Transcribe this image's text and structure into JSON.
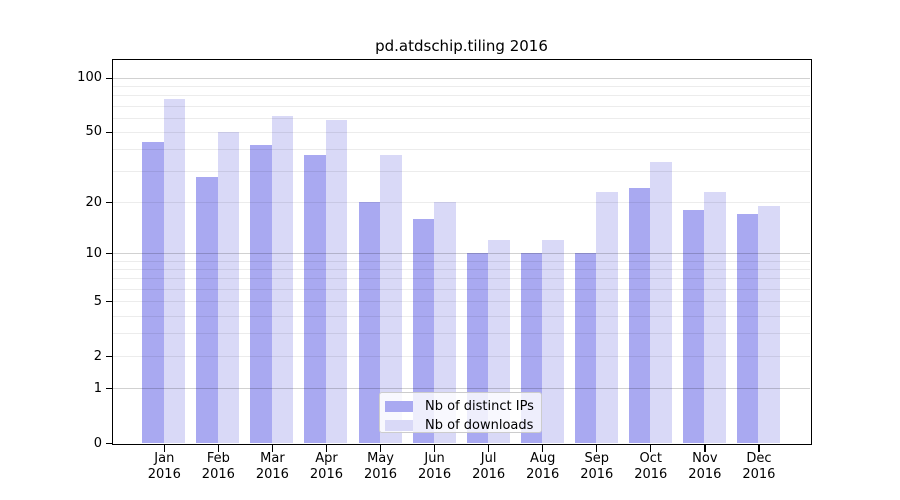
{
  "title": "pd.atdschip.tiling 2016",
  "chart_data": {
    "type": "bar",
    "title": "pd.atdschip.tiling 2016",
    "categories": [
      "Jan",
      "Feb",
      "Mar",
      "Apr",
      "May",
      "Jun",
      "Jul",
      "Aug",
      "Sep",
      "Oct",
      "Nov",
      "Dec"
    ],
    "year_label": "2016",
    "series": [
      {
        "name": "Nb of distinct IPs",
        "color": "#a9a9f1",
        "values": [
          44,
          28,
          42,
          37,
          20,
          16,
          10,
          10,
          10,
          24,
          18,
          17
        ]
      },
      {
        "name": "Nb of downloads",
        "color": "#d9d9f7",
        "values": [
          76,
          50,
          61,
          58,
          37,
          20,
          12,
          12,
          23,
          34,
          23,
          19
        ]
      }
    ],
    "xlabel": "",
    "ylabel": "",
    "yscale": "log1p",
    "ylim": [
      0,
      130
    ],
    "yticks": [
      0,
      1,
      2,
      5,
      10,
      20,
      50,
      100
    ],
    "major_gridlines": [
      1,
      10,
      100
    ],
    "minor_gridlines": [
      2,
      3,
      4,
      5,
      6,
      7,
      8,
      9,
      20,
      30,
      40,
      50,
      60,
      70,
      80,
      90
    ],
    "grid": true,
    "legend_position": "lower center"
  },
  "legend": {
    "items": [
      {
        "label": "Nb of distinct IPs",
        "color": "#a9a9f1"
      },
      {
        "label": "Nb of downloads",
        "color": "#d9d9f7"
      }
    ]
  }
}
